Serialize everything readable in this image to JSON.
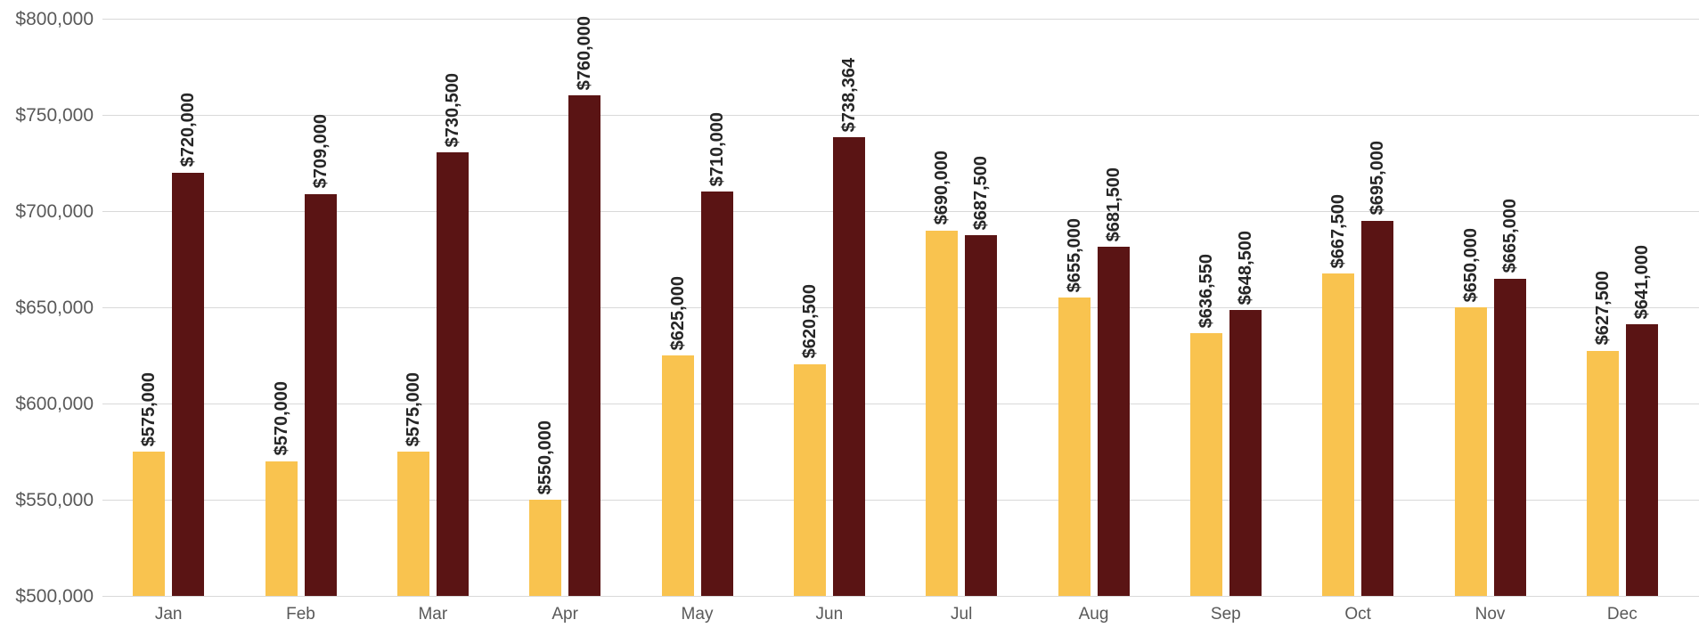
{
  "chart_data": {
    "type": "bar",
    "title": "",
    "xlabel": "",
    "ylabel": "",
    "categories": [
      "Jan",
      "Feb",
      "Mar",
      "Apr",
      "May",
      "Jun",
      "Jul",
      "Aug",
      "Sep",
      "Oct",
      "Nov",
      "Dec"
    ],
    "series": [
      {
        "id": "series-1",
        "color": "#f9c34f",
        "values": [
          575000,
          570000,
          575000,
          550000,
          625000,
          620500,
          690000,
          655000,
          636550,
          667500,
          650000,
          627500
        ],
        "labels": [
          "$575,000",
          "$570,000",
          "$575,000",
          "$550,000",
          "$625,000",
          "$620,500",
          "$690,000",
          "$655,000",
          "$636,550",
          "$667,500",
          "$650,000",
          "$627,500"
        ]
      },
      {
        "id": "series-2",
        "color": "#5a1414",
        "values": [
          720000,
          709000,
          730500,
          760000,
          710000,
          738364,
          687500,
          681500,
          648500,
          695000,
          665000,
          641000
        ],
        "labels": [
          "$720,000",
          "$709,000",
          "$730,500",
          "$760,000",
          "$710,000",
          "$738,364",
          "$687,500",
          "$681,500",
          "$648,500",
          "$695,000",
          "$665,000",
          "$641,000"
        ]
      }
    ],
    "ylim": [
      500000,
      800000
    ],
    "ytick_step": 50000,
    "yticks": [
      "$500,000",
      "$550,000",
      "$600,000",
      "$650,000",
      "$700,000",
      "$750,000",
      "$800,000"
    ],
    "grid": true,
    "legend": false,
    "colors": {
      "series1": "#f9c34f",
      "series2": "#5a1414",
      "gridline": "#d9d9d9",
      "axis_text": "#595959",
      "label_text": "#262626",
      "background": "#ffffff"
    }
  }
}
